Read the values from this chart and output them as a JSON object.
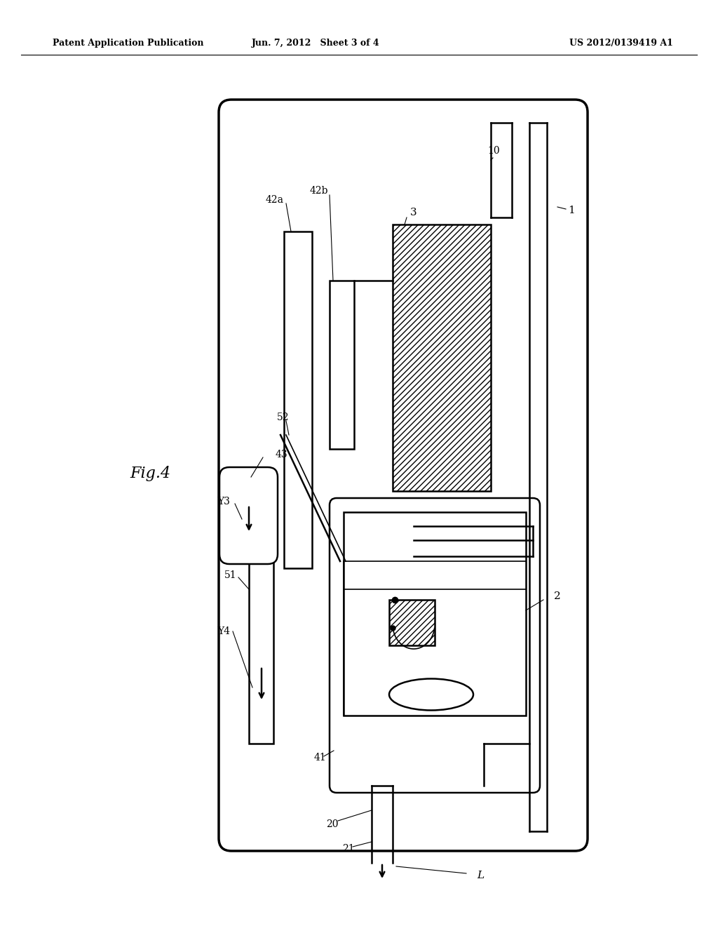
{
  "bg_color": "#ffffff",
  "line_color": "#000000",
  "fig_label": "Fig.4",
  "header_left": "Patent Application Publication",
  "header_center": "Jun. 7, 2012   Sheet 3 of 4",
  "header_right": "US 2012/0139419 A1"
}
